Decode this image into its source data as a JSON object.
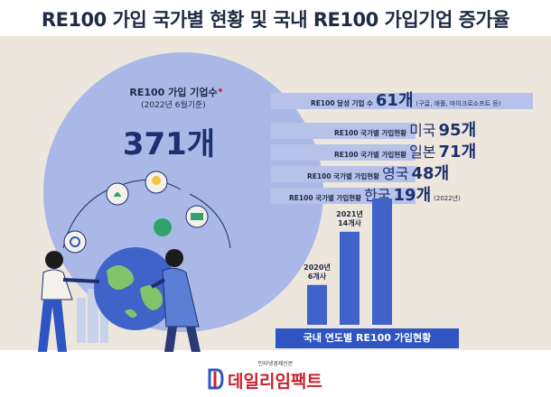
{
  "title": "RE100 가입 국가별 현황 및 국내 RE100 가입기업 증가율",
  "circle": {
    "label": "RE100 가입 기업수",
    "date": "(2022년 6월기준)",
    "total": "371개"
  },
  "bands": [
    {
      "label": "RE100 달성 기업 수",
      "country": "",
      "value": "61개",
      "note": "(구글, 애플, 마이크로소프트 등)"
    },
    {
      "label": "RE100 국가별 가입현황",
      "country": "미국",
      "value": "95개",
      "note": ""
    },
    {
      "label": "RE100 국가별 가입현황",
      "country": "일본",
      "value": "71개",
      "note": ""
    },
    {
      "label": "RE100 국가별 가입현황",
      "country": "영국",
      "value": "48개",
      "note": ""
    },
    {
      "label": "RE100 국가별 가입현황",
      "country": "한국",
      "value": "19개",
      "note": "(2022년)"
    }
  ],
  "chart_data": {
    "type": "bar",
    "title": "국내 연도별 RE100 가입현황",
    "categories": [
      "2020년",
      "2021년",
      "2022년"
    ],
    "values": [
      6,
      14,
      19
    ],
    "data_labels": [
      "2020년\n6개사",
      "2021년\n14개사",
      ""
    ],
    "ylim": [
      0,
      19
    ],
    "grid": false
  },
  "footer": {
    "caption": "국내 연도별 RE100 가입현황"
  },
  "logo": {
    "tagline": "인터넷경제신문",
    "name": "데일리임팩트"
  },
  "colors": {
    "panel": "#ece6dc",
    "circle": "#a9b8e6",
    "accent": "#2f55c2",
    "logo": "#c8232c"
  }
}
